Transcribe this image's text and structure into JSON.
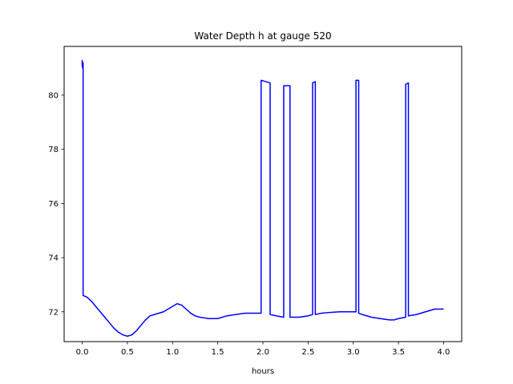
{
  "chart_data": {
    "type": "line",
    "title": "Water Depth h at gauge 520",
    "xlabel": "hours",
    "ylabel": "",
    "xlim": [
      -0.2,
      4.2
    ],
    "ylim": [
      70.9,
      81.8
    ],
    "xticks": [
      0.0,
      0.5,
      1.0,
      1.5,
      2.0,
      2.5,
      3.0,
      3.5,
      4.0
    ],
    "xtick_labels": [
      "0.0",
      "0.5",
      "1.0",
      "1.5",
      "2.0",
      "2.5",
      "3.0",
      "3.5",
      "4.0"
    ],
    "yticks": [
      72,
      74,
      76,
      78,
      80
    ],
    "ytick_labels": [
      "72",
      "74",
      "76",
      "78",
      "80"
    ],
    "grid": false,
    "series": [
      {
        "color": "#0000ff",
        "x": [
          0.0,
          0.0,
          0.005,
          0.01,
          0.01,
          0.05,
          0.1,
          0.15,
          0.2,
          0.25,
          0.3,
          0.35,
          0.4,
          0.45,
          0.5,
          0.55,
          0.6,
          0.65,
          0.7,
          0.75,
          0.8,
          0.9,
          1.0,
          1.05,
          1.1,
          1.15,
          1.2,
          1.25,
          1.3,
          1.4,
          1.5,
          1.6,
          1.7,
          1.8,
          1.9,
          1.98,
          1.98,
          2.08,
          2.08,
          2.15,
          2.23,
          2.23,
          2.3,
          2.3,
          2.4,
          2.5,
          2.55,
          2.55,
          2.58,
          2.58,
          2.65,
          2.75,
          2.85,
          2.95,
          3.0,
          3.03,
          3.03,
          3.06,
          3.06,
          3.1,
          3.2,
          3.3,
          3.4,
          3.45,
          3.5,
          3.58,
          3.58,
          3.61,
          3.61,
          3.7,
          3.8,
          3.9,
          3.95,
          4.0
        ],
        "y": [
          81.3,
          81.1,
          81.0,
          81.2,
          72.6,
          72.55,
          72.4,
          72.2,
          72.0,
          71.8,
          71.6,
          71.4,
          71.25,
          71.15,
          71.1,
          71.15,
          71.3,
          71.5,
          71.7,
          71.85,
          71.9,
          72.0,
          72.2,
          72.3,
          72.25,
          72.1,
          71.95,
          71.85,
          71.8,
          71.75,
          71.75,
          71.85,
          71.9,
          71.95,
          71.95,
          71.95,
          80.55,
          80.45,
          71.9,
          71.85,
          71.8,
          80.35,
          80.35,
          71.8,
          71.8,
          71.85,
          71.9,
          80.45,
          80.5,
          71.9,
          71.95,
          71.98,
          72.0,
          72.0,
          72.0,
          72.0,
          80.55,
          80.55,
          71.95,
          71.9,
          71.8,
          71.75,
          71.7,
          71.7,
          71.75,
          71.8,
          80.4,
          80.45,
          71.85,
          71.9,
          72.0,
          72.1,
          72.1,
          72.1
        ]
      }
    ]
  }
}
